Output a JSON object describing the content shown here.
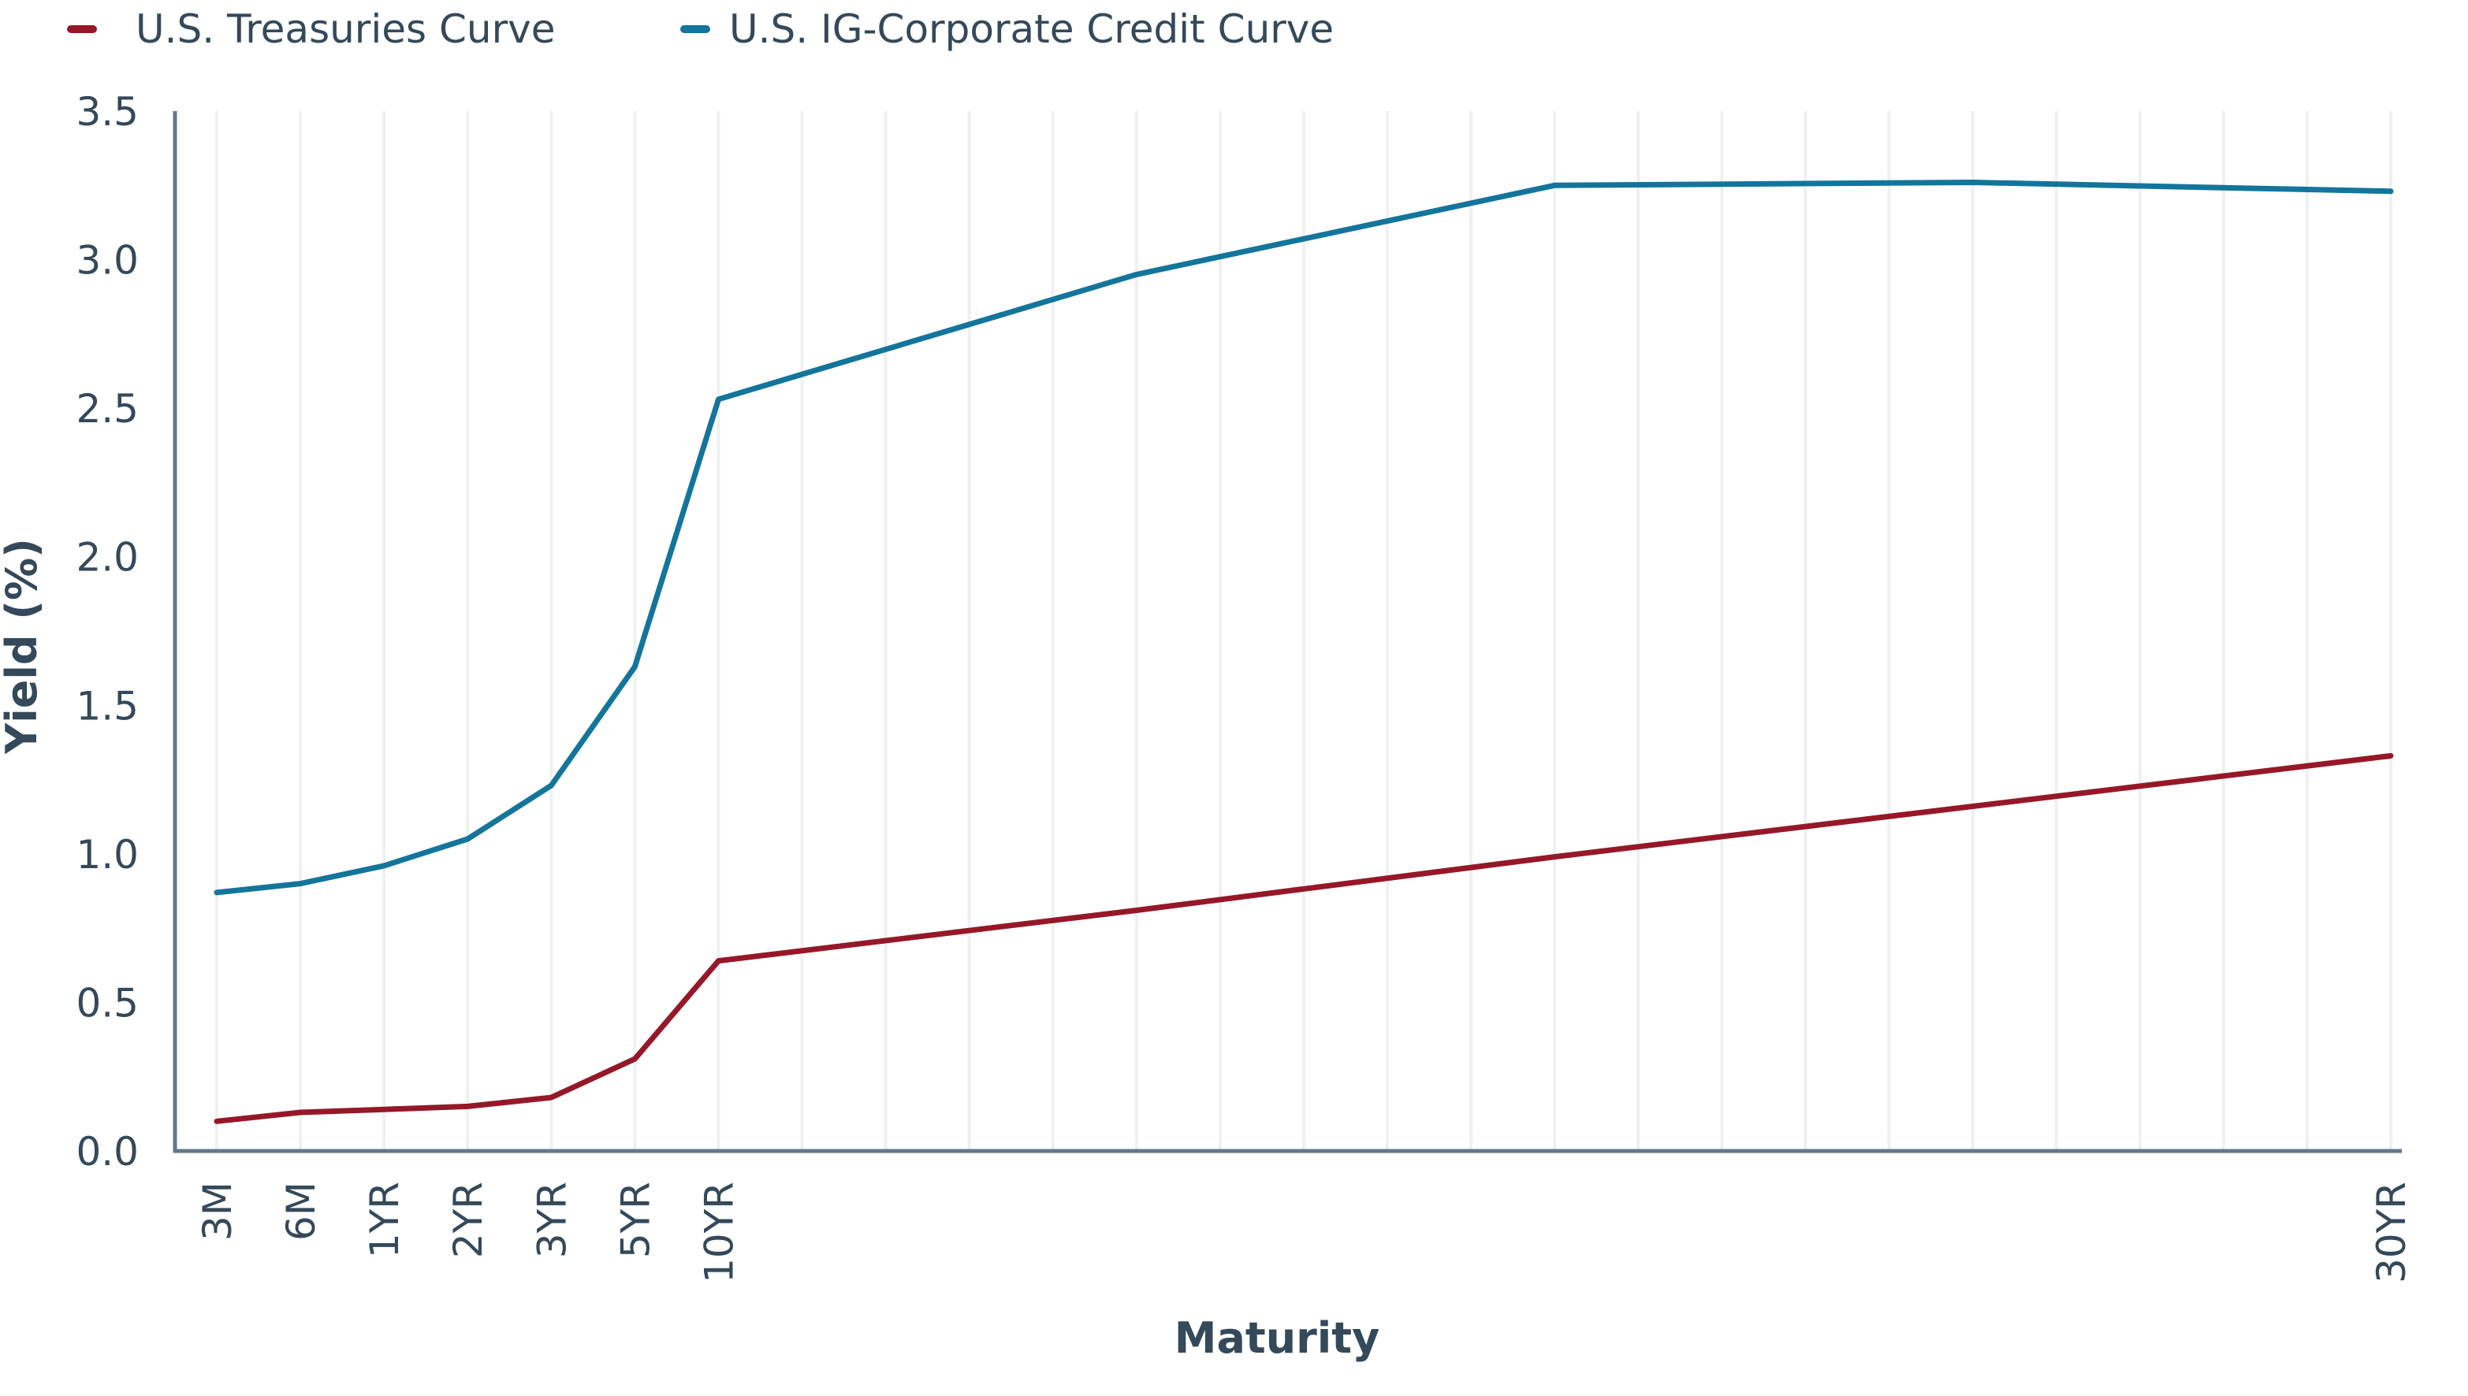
{
  "chart_data": {
    "type": "line",
    "title": "",
    "xlabel": "Maturity",
    "ylabel": "Yield (%)",
    "ylim": [
      0,
      3.5
    ],
    "yticks": [
      "0.0",
      "0.5",
      "1.0",
      "1.5",
      "2.0",
      "2.5",
      "3.0",
      "3.5"
    ],
    "ytick_values": [
      0,
      0.5,
      1.0,
      1.5,
      2.0,
      2.5,
      3.0,
      3.5
    ],
    "grid": "vertical",
    "x_categories_count": 27,
    "x_tick_labels": [
      {
        "index": 0,
        "label": "3M"
      },
      {
        "index": 1,
        "label": "6M"
      },
      {
        "index": 2,
        "label": "1YR"
      },
      {
        "index": 3,
        "label": "2YR"
      },
      {
        "index": 4,
        "label": "3YR"
      },
      {
        "index": 5,
        "label": "5YR"
      },
      {
        "index": 6,
        "label": "10YR"
      },
      {
        "index": 26,
        "label": "30YR"
      }
    ],
    "legend_position": "top-left",
    "series": [
      {
        "name": "U.S. Treasuries Curve",
        "color": "#961828",
        "points": [
          {
            "index": 0,
            "y": 0.1
          },
          {
            "index": 1,
            "y": 0.13
          },
          {
            "index": 2,
            "y": 0.14
          },
          {
            "index": 3,
            "y": 0.15
          },
          {
            "index": 4,
            "y": 0.18
          },
          {
            "index": 5,
            "y": 0.31
          },
          {
            "index": 6,
            "y": 0.64
          },
          {
            "index": 11,
            "y": 0.81
          },
          {
            "index": 16,
            "y": 0.99
          },
          {
            "index": 21,
            "y": 1.16
          },
          {
            "index": 26,
            "y": 1.33
          }
        ]
      },
      {
        "name": "U.S. IG-Corporate Credit Curve",
        "color": "#13759c",
        "points": [
          {
            "index": 0,
            "y": 0.87
          },
          {
            "index": 1,
            "y": 0.9
          },
          {
            "index": 2,
            "y": 0.96
          },
          {
            "index": 3,
            "y": 1.05
          },
          {
            "index": 4,
            "y": 1.23
          },
          {
            "index": 5,
            "y": 1.63
          },
          {
            "index": 6,
            "y": 2.53
          },
          {
            "index": 11,
            "y": 2.95
          },
          {
            "index": 16,
            "y": 3.25
          },
          {
            "index": 21,
            "y": 3.26
          },
          {
            "index": 26,
            "y": 3.23
          }
        ]
      }
    ]
  },
  "colors": {
    "axis": "#64788a",
    "grid": "#eef0f3",
    "text": "#34495a"
  }
}
